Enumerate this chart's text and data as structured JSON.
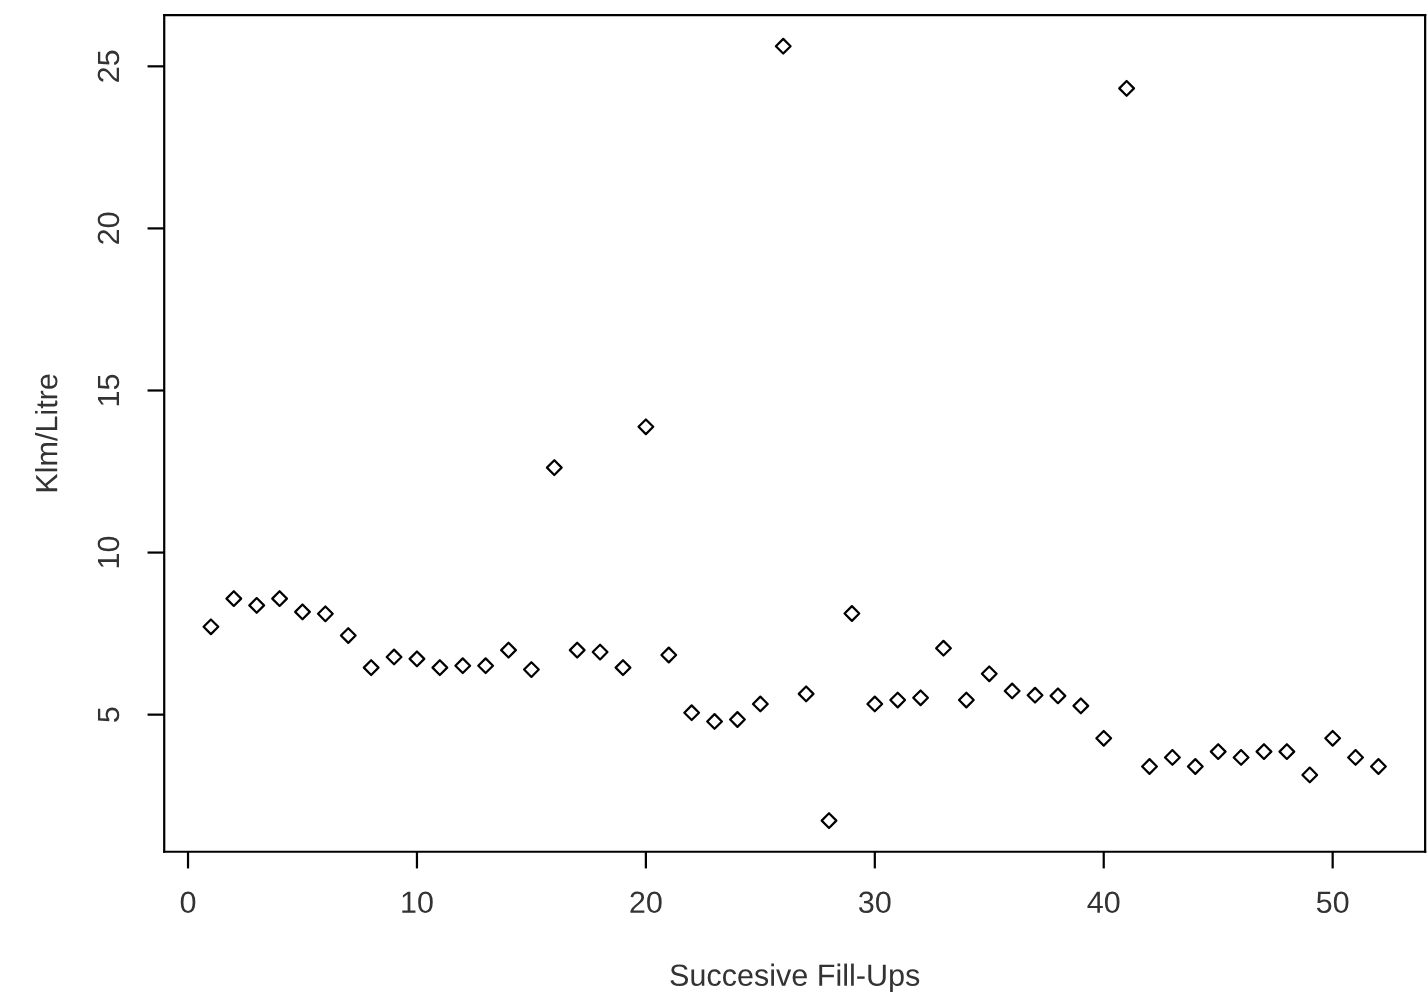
{
  "chart_data": {
    "type": "scatter",
    "xlabel": "Succesive Fill-Ups",
    "ylabel": "Klm/Litre",
    "x": [
      1,
      2,
      3,
      4,
      5,
      6,
      7,
      8,
      9,
      10,
      11,
      12,
      13,
      14,
      15,
      16,
      17,
      18,
      19,
      20,
      21,
      22,
      23,
      24,
      25,
      26,
      27,
      28,
      29,
      30,
      31,
      32,
      33,
      34,
      35,
      36,
      37,
      38,
      39,
      40,
      41,
      42,
      43,
      44,
      45,
      46,
      47,
      48,
      49,
      50,
      51,
      52
    ],
    "series": [
      {
        "color": "#000000",
        "values": [
          7.71,
          8.58,
          8.37,
          8.58,
          8.17,
          8.11,
          7.44,
          6.45,
          6.78,
          6.72,
          6.45,
          6.51,
          6.51,
          6.99,
          6.39,
          12.62,
          6.99,
          6.93,
          6.45,
          13.88,
          6.84,
          5.06,
          4.79,
          4.85,
          5.33,
          25.62,
          5.64,
          1.73,
          8.12,
          5.33,
          5.45,
          5.52,
          7.05,
          5.45,
          6.26,
          5.73,
          5.6,
          5.58,
          5.27,
          4.27,
          24.32,
          3.4,
          3.68,
          3.4,
          3.86,
          3.68,
          3.86,
          3.86,
          3.14,
          4.27,
          3.68,
          3.4
        ]
      }
    ],
    "xlim": [
      -1.04,
      54.04
    ],
    "ylim": [
      0.77,
      26.58
    ],
    "xticks": [
      0,
      10,
      20,
      30,
      40,
      50
    ],
    "yticks": [
      5,
      10,
      15,
      20,
      25
    ],
    "marker": "diamond",
    "grid": false,
    "legend": false
  }
}
